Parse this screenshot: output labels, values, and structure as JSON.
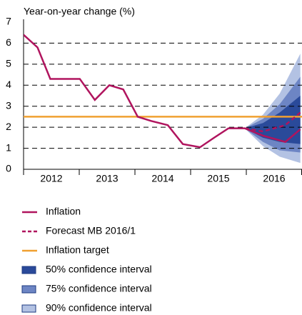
{
  "chart_data": {
    "type": "line",
    "title": "Year-on-year change (%)",
    "xlim": [
      2012,
      2017
    ],
    "xticks": [
      2012,
      2013,
      2014,
      2015,
      2016,
      2017
    ],
    "year_labels": [
      {
        "value": 2012.5,
        "label": "2012"
      },
      {
        "value": 2013.5,
        "label": "2013"
      },
      {
        "value": 2014.5,
        "label": "2014"
      },
      {
        "value": 2015.5,
        "label": "2015"
      },
      {
        "value": 2016.5,
        "label": "2016"
      }
    ],
    "ylim": [
      0,
      7
    ],
    "yticks": [
      0,
      1,
      2,
      3,
      4,
      5,
      6,
      7
    ],
    "grid": true,
    "series": [
      {
        "name": "Inflation",
        "kind": "line",
        "color": "#b0145e",
        "x": [
          2012.0,
          2012.25,
          2012.48,
          2012.76,
          2013.01,
          2013.28,
          2013.54,
          2013.79,
          2014.05,
          2014.29,
          2014.59,
          2014.86,
          2015.17,
          2015.42,
          2015.68,
          2015.97,
          2016.3,
          2016.7,
          2016.97
        ],
        "values": [
          6.4,
          5.8,
          4.3,
          4.3,
          4.3,
          3.3,
          4.0,
          3.8,
          2.5,
          2.3,
          2.1,
          1.2,
          1.05,
          1.5,
          1.95,
          1.95,
          1.6,
          1.3,
          1.9
        ]
      },
      {
        "name": "Forecast MB 2016/1",
        "kind": "dashed",
        "color": "#b0145e",
        "x": [
          2015.97,
          2016.3,
          2016.7,
          2016.97
        ],
        "values": [
          1.95,
          1.8,
          2.1,
          2.7
        ]
      },
      {
        "name": "Inflation target",
        "kind": "line",
        "color": "#f0a030",
        "x": [
          2012,
          2017
        ],
        "values": [
          2.5,
          2.5
        ]
      },
      {
        "name": "50% confidence interval",
        "kind": "band",
        "color": "#2a4a9a",
        "x": [
          2015.97,
          2016.3,
          2016.6,
          2016.97
        ],
        "upper": [
          1.95,
          2.2,
          2.7,
          3.5
        ],
        "lower": [
          1.95,
          1.5,
          1.3,
          1.2
        ]
      },
      {
        "name": "75% confidence interval",
        "kind": "band",
        "color": "#6d85c4",
        "x": [
          2015.97,
          2016.3,
          2016.6,
          2016.97
        ],
        "upper": [
          1.95,
          2.4,
          3.1,
          4.4
        ],
        "lower": [
          1.95,
          1.3,
          0.9,
          0.8
        ]
      },
      {
        "name": "90% confidence interval",
        "kind": "band",
        "color": "#b3c2e3",
        "x": [
          2015.97,
          2016.3,
          2016.6,
          2016.97
        ],
        "upper": [
          1.95,
          2.6,
          3.6,
          5.5
        ],
        "lower": [
          1.95,
          1.1,
          0.6,
          0.3
        ]
      }
    ]
  }
}
